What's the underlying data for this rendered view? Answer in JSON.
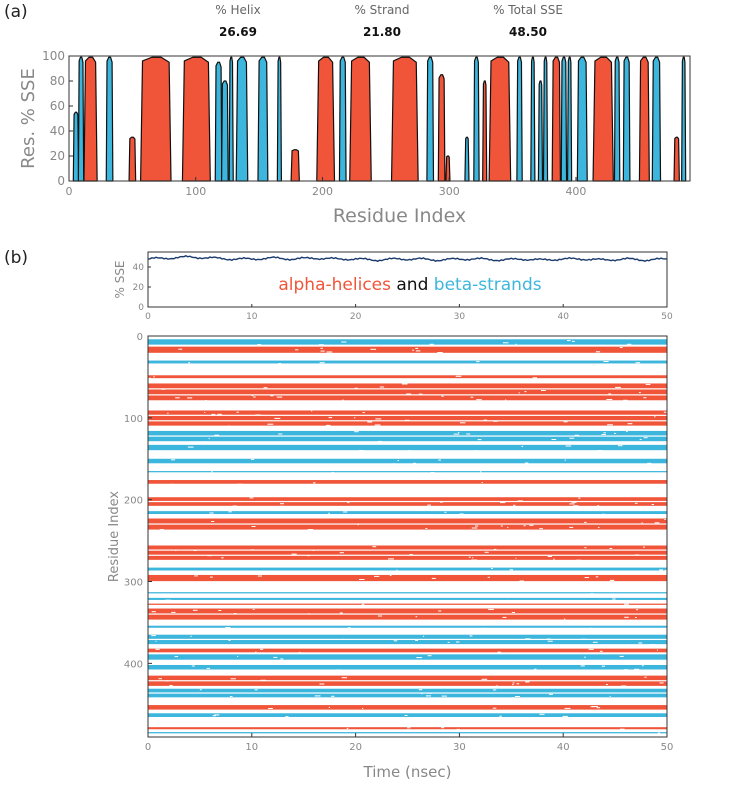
{
  "panel_a": {
    "label": "(a)",
    "stats": [
      {
        "name": "% Helix",
        "value": "26.69"
      },
      {
        "name": "% Strand",
        "value": "21.80"
      },
      {
        "name": "% Total SSE",
        "value": "48.50"
      }
    ]
  },
  "panel_b": {
    "label": "(b)",
    "legend": {
      "helix": "alpha-helices",
      "and": "and",
      "strand": "beta-strands"
    }
  },
  "colors": {
    "helix": "#f0553a",
    "strand": "#3db6dd",
    "line": "#1a3a6e",
    "axis": "#333333",
    "tick": "#888888"
  },
  "chart_data": [
    {
      "type": "area",
      "title": "",
      "xlabel": "Residue Index",
      "ylabel": "Res. % SSE",
      "xlim": [
        0,
        490
      ],
      "ylim": [
        0,
        100
      ],
      "xticks": [
        0,
        100,
        200,
        300,
        400
      ],
      "yticks": [
        0,
        20,
        40,
        60,
        80,
        100
      ],
      "series": [
        {
          "name": "Helix",
          "color": "#f0553a",
          "regions": [
            [
              13,
              21,
              99
            ],
            [
              48,
              52,
              35
            ],
            [
              58,
              79,
              99
            ],
            [
              91,
              110,
              99
            ],
            [
              176,
              181,
              25
            ],
            [
              197,
              208,
              99
            ],
            [
              223,
              237,
              99
            ],
            [
              256,
              274,
              99
            ],
            [
              292,
              296,
              85
            ],
            [
              298,
              300,
              20
            ],
            [
              327,
              329,
              80
            ],
            [
              333,
              347,
              99
            ],
            [
              382,
              387,
              99
            ],
            [
              415,
              428,
              99
            ],
            [
              451,
              457,
              99
            ],
            [
              478,
              481,
              35
            ]
          ]
        },
        {
          "name": "Strand",
          "color": "#3db6dd",
          "regions": [
            [
              4,
              7,
              55
            ],
            [
              8,
              11,
              99
            ],
            [
              30,
              34,
              99
            ],
            [
              116,
              120,
              95
            ],
            [
              121,
              125,
              80
            ],
            [
              127,
              129,
              99
            ],
            [
              133,
              140,
              99
            ],
            [
              150,
              156,
              99
            ],
            [
              165,
              167,
              99
            ],
            [
              214,
              218,
              99
            ],
            [
              283,
              287,
              99
            ],
            [
              313,
              315,
              35
            ],
            [
              320,
              323,
              99
            ],
            [
              354,
              357,
              99
            ],
            [
              365,
              367,
              99
            ],
            [
              371,
              373,
              80
            ],
            [
              375,
              377,
              99
            ],
            [
              389,
              392,
              99
            ],
            [
              394,
              396,
              99
            ],
            [
              402,
              408,
              99
            ],
            [
              431,
              434,
              99
            ],
            [
              438,
              442,
              99
            ],
            [
              461,
              466,
              99
            ],
            [
              484,
              486,
              99
            ]
          ]
        }
      ]
    },
    {
      "type": "line",
      "title": "",
      "xlabel": "",
      "ylabel": "% SSE",
      "xlim": [
        0,
        50
      ],
      "ylim": [
        0,
        55
      ],
      "xticks": [
        0,
        10,
        20,
        30,
        40,
        50
      ],
      "yticks": [
        0,
        20,
        40
      ],
      "series": [
        {
          "name": "Total SSE",
          "x": [
            0,
            2,
            4,
            6,
            8,
            10,
            12,
            14,
            16,
            18,
            20,
            22,
            24,
            26,
            28,
            30,
            32,
            34,
            36,
            38,
            40,
            42,
            44,
            46,
            48,
            50
          ],
          "values": [
            48,
            49,
            50,
            49,
            48,
            48,
            49,
            48,
            49,
            48,
            48,
            47,
            48,
            48,
            47,
            48,
            48,
            47,
            48,
            47,
            48,
            48,
            47,
            48,
            47,
            48
          ]
        }
      ]
    },
    {
      "type": "heatmap",
      "title": "",
      "xlabel": "Time (nsec)",
      "ylabel": "Residue Index",
      "xlim": [
        0,
        50
      ],
      "ylim": [
        0,
        490
      ],
      "xticks": [
        0,
        10,
        20,
        30,
        40,
        50
      ],
      "yticks": [
        0,
        100,
        200,
        300,
        400
      ],
      "bands": [
        {
          "ss": "strand",
          "start": 4,
          "end": 11
        },
        {
          "ss": "helix",
          "start": 13,
          "end": 21
        },
        {
          "ss": "strand",
          "start": 30,
          "end": 34
        },
        {
          "ss": "helix",
          "start": 48,
          "end": 52
        },
        {
          "ss": "helix",
          "start": 58,
          "end": 79
        },
        {
          "ss": "helix",
          "start": 91,
          "end": 110
        },
        {
          "ss": "strand",
          "start": 116,
          "end": 129
        },
        {
          "ss": "strand",
          "start": 133,
          "end": 140
        },
        {
          "ss": "strand",
          "start": 150,
          "end": 156
        },
        {
          "ss": "strand",
          "start": 165,
          "end": 167
        },
        {
          "ss": "helix",
          "start": 176,
          "end": 181
        },
        {
          "ss": "helix",
          "start": 197,
          "end": 208
        },
        {
          "ss": "strand",
          "start": 214,
          "end": 218
        },
        {
          "ss": "helix",
          "start": 223,
          "end": 237
        },
        {
          "ss": "helix",
          "start": 256,
          "end": 274
        },
        {
          "ss": "strand",
          "start": 283,
          "end": 287
        },
        {
          "ss": "helix",
          "start": 292,
          "end": 300
        },
        {
          "ss": "strand",
          "start": 313,
          "end": 315
        },
        {
          "ss": "strand",
          "start": 320,
          "end": 323
        },
        {
          "ss": "helix",
          "start": 327,
          "end": 329
        },
        {
          "ss": "helix",
          "start": 333,
          "end": 347
        },
        {
          "ss": "strand",
          "start": 354,
          "end": 357
        },
        {
          "ss": "strand",
          "start": 365,
          "end": 377
        },
        {
          "ss": "helix",
          "start": 382,
          "end": 387
        },
        {
          "ss": "strand",
          "start": 389,
          "end": 396
        },
        {
          "ss": "strand",
          "start": 402,
          "end": 408
        },
        {
          "ss": "helix",
          "start": 415,
          "end": 428
        },
        {
          "ss": "strand",
          "start": 431,
          "end": 442
        },
        {
          "ss": "helix",
          "start": 451,
          "end": 457
        },
        {
          "ss": "strand",
          "start": 461,
          "end": 466
        },
        {
          "ss": "helix",
          "start": 478,
          "end": 481
        },
        {
          "ss": "strand",
          "start": 484,
          "end": 486
        }
      ]
    }
  ]
}
